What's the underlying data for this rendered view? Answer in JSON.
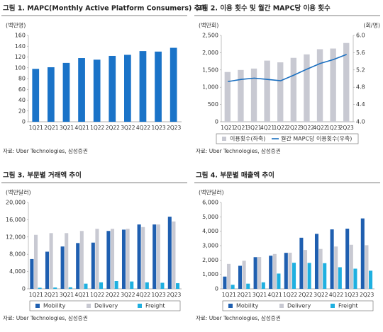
{
  "chart_data": [
    {
      "type": "bar",
      "title": "그림 1. MAPC(Monthly Active Platform Consumers) 추이",
      "unit": "(백만명)",
      "categories": [
        "1Q21",
        "2Q21",
        "3Q21",
        "4Q21",
        "1Q22",
        "2Q22",
        "3Q22",
        "4Q22",
        "1Q23",
        "2Q23"
      ],
      "series": [
        {
          "name": null,
          "color": "#1a73c8",
          "values": [
            98,
            101,
            109,
            118,
            115,
            122,
            124,
            131,
            130,
            137
          ]
        }
      ],
      "ylim": [
        0,
        160
      ],
      "yticks": [
        0,
        20,
        40,
        60,
        80,
        100,
        120,
        140,
        160
      ],
      "source": "자료: Uber Technologies, 삼성증권"
    },
    {
      "type": "bar",
      "title": "그림 2. 이용 횟수 및 월간 MAPC당 이용 횟수",
      "unit": "(백만회)",
      "y2_unit": "(회/명)",
      "categories": [
        "1Q21",
        "2Q21",
        "3Q21",
        "4Q21",
        "1Q22",
        "2Q22",
        "3Q22",
        "4Q22",
        "1Q23",
        "2Q23"
      ],
      "series": [
        {
          "name": "이용횟수(좌축)",
          "color": "#c8c9d2",
          "values": [
            1440,
            1500,
            1540,
            1770,
            1720,
            1850,
            1950,
            2100,
            2120,
            2280
          ]
        },
        {
          "name": "월간 MAPC당 이용횟수(우축)",
          "color": "#1a6fc0",
          "type": "line",
          "axis": "y2",
          "values": [
            4.93,
            4.98,
            5.01,
            4.98,
            4.95,
            5.08,
            5.22,
            5.35,
            5.44,
            5.56
          ]
        }
      ],
      "ylim": [
        0,
        2500
      ],
      "yticks": [
        0,
        500,
        {
          "value": 1000,
          "label": "1,000"
        },
        {
          "value": 1500,
          "label": "1,500"
        },
        {
          "value": 2000,
          "label": "2,000"
        },
        {
          "value": 2500,
          "label": "2,500"
        }
      ],
      "y2lim": [
        4,
        6
      ],
      "y2ticks": [
        {
          "value": 4,
          "label": "4.0"
        },
        4.4,
        4.8,
        5.2,
        5.6,
        {
          "value": 6,
          "label": "6.0"
        }
      ],
      "legend": "bottom",
      "source": "자료: Uber Technologies, 삼성증권"
    },
    {
      "type": "bar",
      "title": "그림 3. 부문별 거래액 추이",
      "unit": "(백만달러)",
      "categories": [
        "1Q21",
        "2Q21",
        "3Q21",
        "4Q21",
        "1Q22",
        "2Q22",
        "3Q22",
        "4Q22",
        "1Q23",
        "2Q23"
      ],
      "series": [
        {
          "name": "Mobility",
          "color": "#1f5fb0",
          "values": [
            6900,
            8600,
            9800,
            10600,
            10700,
            13400,
            13700,
            14900,
            14900,
            16700
          ]
        },
        {
          "name": "Delivery",
          "color": "#c8c9d2",
          "values": [
            12500,
            12900,
            12900,
            13400,
            13900,
            13900,
            13900,
            14300,
            14900,
            15600
          ]
        },
        {
          "name": "Freight",
          "color": "#1fb0e0",
          "values": [
            250,
            300,
            350,
            1200,
            1500,
            1800,
            1700,
            1500,
            1400,
            1300
          ]
        }
      ],
      "ylim": [
        0,
        20000
      ],
      "yticks": [
        0,
        {
          "value": 4000,
          "label": "4,000"
        },
        {
          "value": 8000,
          "label": "8,000"
        },
        {
          "value": 12000,
          "label": "12,000"
        },
        {
          "value": 16000,
          "label": "16,000"
        },
        {
          "value": 20000,
          "label": "20,000"
        }
      ],
      "legend": "bottom",
      "source": "자료: Uber Technologies, 삼성증권"
    },
    {
      "type": "bar",
      "title": "그림 4. 부문별 매출액 추이",
      "unit": "(백만달러)",
      "categories": [
        "1Q21",
        "2Q21",
        "3Q21",
        "4Q21",
        "1Q22",
        "2Q22",
        "3Q22",
        "4Q22",
        "1Q23",
        "2Q23"
      ],
      "series": [
        {
          "name": "Mobility",
          "color": "#1f5fb0",
          "values": [
            850,
            1600,
            2200,
            2300,
            2500,
            3550,
            3820,
            4130,
            4180,
            4890
          ]
        },
        {
          "name": "Delivery",
          "color": "#c8c9d2",
          "values": [
            1730,
            1950,
            2210,
            2420,
            2510,
            2700,
            2770,
            2940,
            3060,
            3030
          ]
        },
        {
          "name": "Freight",
          "color": "#1fb0e0",
          "values": [
            280,
            360,
            450,
            1060,
            1810,
            1800,
            1780,
            1500,
            1400,
            1260
          ]
        }
      ],
      "ylim": [
        0,
        6000
      ],
      "yticks": [
        0,
        {
          "value": 1000,
          "label": "1,000"
        },
        {
          "value": 2000,
          "label": "2,000"
        },
        {
          "value": 3000,
          "label": "3,000"
        },
        {
          "value": 4000,
          "label": "4,000"
        },
        {
          "value": 5000,
          "label": "5,000"
        },
        {
          "value": 6000,
          "label": "6,000"
        }
      ],
      "legend": "bottom",
      "source": "자료: Uber Technologies, 삼성증권"
    }
  ]
}
